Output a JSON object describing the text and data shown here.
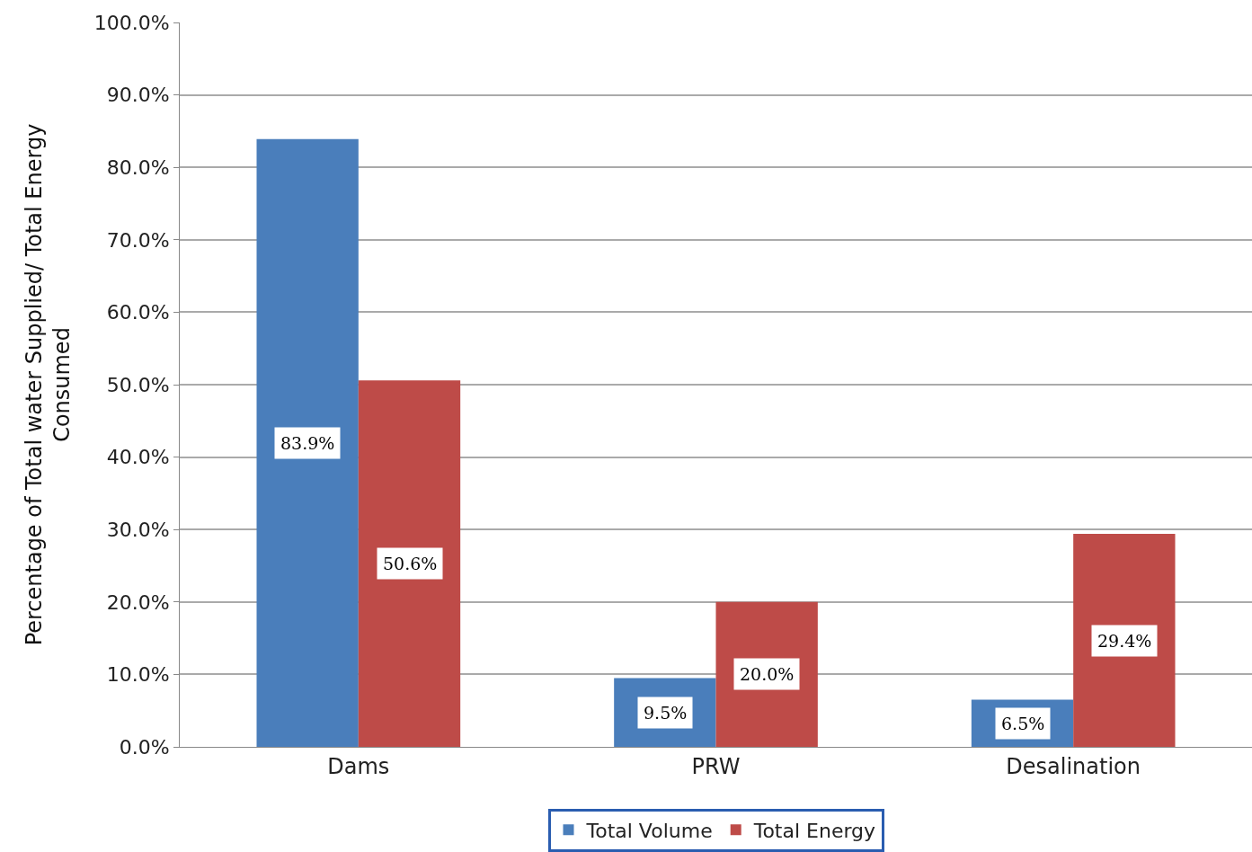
{
  "chart_data": {
    "type": "bar",
    "ylabel": "Percentage of Total water Supplied/ Total Energy\nConsumed",
    "categories": [
      "Dams",
      "PRW",
      "Desalination"
    ],
    "series": [
      {
        "name": "Total Volume",
        "color": "#4a7ebb",
        "values": [
          83.9,
          9.5,
          6.5
        ],
        "value_labels": [
          "83.9%",
          "9.5%",
          "6.5%"
        ]
      },
      {
        "name": "Total Energy",
        "color": "#be4b48",
        "values": [
          50.6,
          20.0,
          29.4
        ],
        "value_labels": [
          "50.6%",
          "20.0%",
          "29.4%"
        ]
      }
    ],
    "ylim": [
      0,
      100
    ],
    "yticks": [
      {
        "value": 0,
        "label": "0.0%"
      },
      {
        "value": 10,
        "label": "10.0%"
      },
      {
        "value": 20,
        "label": "20.0%"
      },
      {
        "value": 30,
        "label": "30.0%"
      },
      {
        "value": 40,
        "label": "40.0%"
      },
      {
        "value": 50,
        "label": "50.0%"
      },
      {
        "value": 60,
        "label": "60.0%"
      },
      {
        "value": 70,
        "label": "70.0%"
      },
      {
        "value": 80,
        "label": "80.0%"
      },
      {
        "value": 90,
        "label": "90.0%"
      },
      {
        "value": 100,
        "label": "100.0%"
      }
    ],
    "grid": "y",
    "legend": "bottom"
  }
}
